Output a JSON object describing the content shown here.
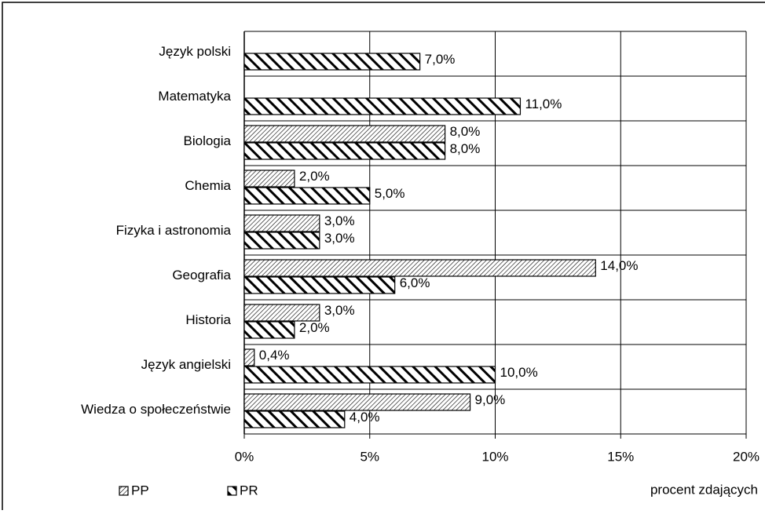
{
  "chart_data": {
    "type": "hbar",
    "categories": [
      "Język polski",
      "Matematyka",
      "Biologia",
      "Chemia",
      "Fizyka i astronomia",
      "Geografia",
      "Historia",
      "Język angielski",
      "Wiedza o społeczeństwie"
    ],
    "series": [
      {
        "name": "PP",
        "color": "#000000",
        "values": [
          null,
          null,
          8,
          2,
          3,
          14,
          3,
          0.4,
          9
        ],
        "value_labels": [
          null,
          null,
          "8,0%",
          "2,0%",
          "3,0%",
          "14,0%",
          "3,0%",
          "0,4%",
          "9,0%"
        ]
      },
      {
        "name": "PR",
        "color": "#000000",
        "values": [
          7,
          11,
          8,
          5,
          3,
          6,
          2,
          10,
          4
        ],
        "value_labels": [
          "7,0%",
          "11,0%",
          "8,0%",
          "5,0%",
          "3,0%",
          "6,0%",
          "2,0%",
          "10,0%",
          "4,0%"
        ]
      }
    ],
    "xlim": [
      0,
      20
    ],
    "xticks": [
      {
        "value": 0,
        "label": "0%"
      },
      {
        "value": 5,
        "label": "5%"
      },
      {
        "value": 10,
        "label": "10%"
      },
      {
        "value": 15,
        "label": "15%"
      },
      {
        "value": 20,
        "label": "20%"
      }
    ],
    "xlabel": "procent zdających",
    "grid": true
  }
}
